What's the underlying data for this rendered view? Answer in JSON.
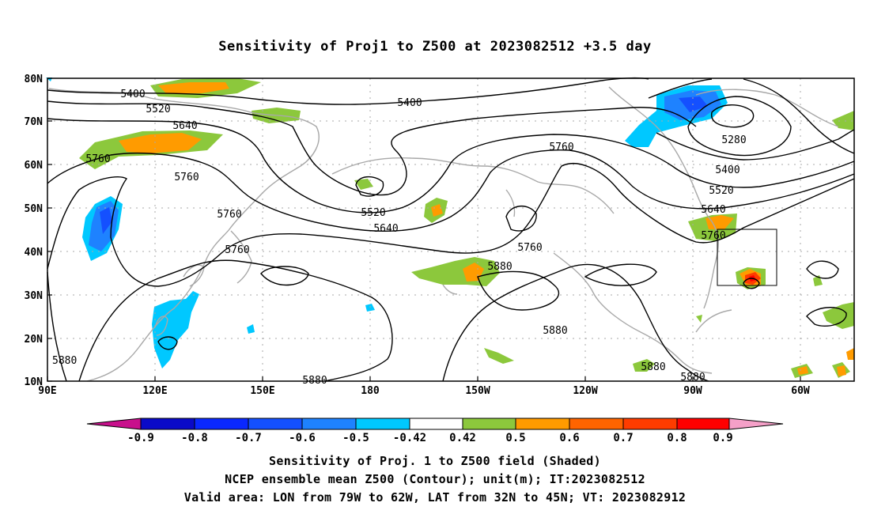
{
  "title": "Sensitivity of Proj1 to Z500 at 2023082512 +3.5 day",
  "axes": {
    "lat_labels": [
      "80N",
      "70N",
      "60N",
      "50N",
      "40N",
      "30N",
      "20N",
      "10N"
    ],
    "lon_labels": [
      "90E",
      "120E",
      "150E",
      "180",
      "150W",
      "120W",
      "90W",
      "60W"
    ]
  },
  "colorbar": {
    "labels": [
      "-0.9",
      "-0.8",
      "-0.7",
      "-0.6",
      "-0.5",
      "-0.42",
      "0.42",
      "0.5",
      "0.6",
      "0.7",
      "0.8",
      "0.9"
    ],
    "low_end_color": "#c8108c",
    "high_end_color": "#f5a0c8",
    "colors": [
      "#0a0ac8",
      "#0a28ff",
      "#1450ff",
      "#1e82ff",
      "#00c8ff",
      "#ffffff",
      "#8cc83c",
      "#ff9b00",
      "#ff6400",
      "#ff3c00",
      "#ff0000"
    ]
  },
  "contour_labels": [
    "5400",
    "5400",
    "5520",
    "5640",
    "5760",
    "5760",
    "5760",
    "5280",
    "5400",
    "5520",
    "5640",
    "5760",
    "5760",
    "5520",
    "5640",
    "5760",
    "5880",
    "5880",
    "5880",
    "5880",
    "5880",
    "5880",
    "5760"
  ],
  "captions": [
    "Sensitivity of Proj. 1 to Z500 field (Shaded)",
    "NCEP ensemble mean Z500 (Contour); unit(m); IT:2023082512",
    "Valid area: LON from 79W to 62W, LAT from 32N to 45N; VT: 2023082912"
  ]
}
